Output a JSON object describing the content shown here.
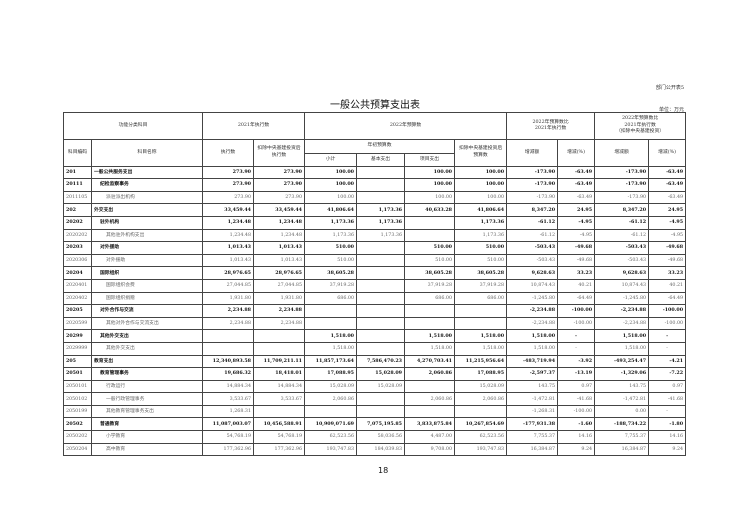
{
  "header": {
    "form_no": "部门公开表5",
    "title": "一般公共预算支出表",
    "unit": "单位：万元"
  },
  "columns": {
    "func_class": "功能分类科目",
    "exec_2021": "2021年执行数",
    "budget_2022": "2022年预算数",
    "cmp_2021": "2022年预算数比\n2021年执行数",
    "cmp_2021_excl": "2022年预算数比\n2021年执行数\n（扣除中央基建投资）",
    "code": "科目编码",
    "name": "科目名称",
    "exec": "执行数",
    "exec_excl": "扣除中央基建投资后\n执行数",
    "annual_budget": "年初预算数",
    "budget_excl": "扣除中央基建投资后\n预算数",
    "change_amt": "增减额",
    "change_pct": "增减(%)",
    "change_amt2": "增减额",
    "change_pct2": "增减(%)",
    "subtotal": "小计",
    "basic": "基本支出",
    "project": "项目支出"
  },
  "rows": [
    {
      "code": "201",
      "name": "一般公共服务支出",
      "level": 1,
      "v": [
        "273.90",
        "273.90",
        "100.00",
        "",
        "100.00",
        "100.00",
        "-173.90",
        "-63.49",
        "-173.90",
        "-63.49"
      ]
    },
    {
      "code": "20111",
      "name": "纪检监察事务",
      "level": 2,
      "v": [
        "273.90",
        "273.90",
        "100.00",
        "",
        "100.00",
        "100.00",
        "-173.90",
        "-63.49",
        "-173.90",
        "-63.49"
      ]
    },
    {
      "code": "2011105",
      "name": "派驻派出机构",
      "level": 3,
      "v": [
        "273.90",
        "273.90",
        "100.00",
        "",
        "100.00",
        "100.00",
        "-173.90",
        "-63.49",
        "-173.90",
        "-63.49"
      ]
    },
    {
      "code": "202",
      "name": "外交支出",
      "level": 1,
      "v": [
        "33,459.44",
        "33,459.44",
        "41,806.64",
        "1,173.36",
        "40,633.28",
        "41,806.64",
        "8,347.20",
        "24.95",
        "8,347.20",
        "24.95"
      ]
    },
    {
      "code": "20202",
      "name": "驻外机构",
      "level": 2,
      "v": [
        "1,234.48",
        "1,234.48",
        "1,173.36",
        "1,173.36",
        "",
        "1,173.36",
        "-61.12",
        "-4.95",
        "-61.12",
        "-4.95"
      ]
    },
    {
      "code": "2020202",
      "name": "其他驻外机构支出",
      "level": 3,
      "v": [
        "1,234.48",
        "1,234.48",
        "1,173.36",
        "1,173.36",
        "",
        "1,173.36",
        "-61.12",
        "-4.95",
        "-61.12",
        "-4.95"
      ]
    },
    {
      "code": "20203",
      "name": "对外援助",
      "level": 2,
      "v": [
        "1,013.43",
        "1,013.43",
        "510.00",
        "",
        "510.00",
        "510.00",
        "-503.43",
        "-49.68",
        "-503.43",
        "-49.68"
      ]
    },
    {
      "code": "2020306",
      "name": "对外援助",
      "level": 3,
      "v": [
        "1,013.43",
        "1,013.43",
        "510.00",
        "",
        "510.00",
        "510.00",
        "-503.43",
        "-49.68",
        "-503.43",
        "-49.68"
      ]
    },
    {
      "code": "20204",
      "name": "国际组织",
      "level": 2,
      "v": [
        "28,976.65",
        "28,976.65",
        "38,605.28",
        "",
        "38,605.28",
        "38,605.28",
        "9,628.63",
        "33.23",
        "9,628.63",
        "33.23"
      ]
    },
    {
      "code": "2020401",
      "name": "国际组织会费",
      "level": 3,
      "v": [
        "27,044.85",
        "27,044.85",
        "37,919.28",
        "",
        "37,919.28",
        "37,919.28",
        "10,874.43",
        "40.21",
        "10,874.43",
        "40.21"
      ]
    },
    {
      "code": "2020402",
      "name": "国际组织捐赠",
      "level": 3,
      "v": [
        "1,931.80",
        "1,931.80",
        "686.00",
        "",
        "686.00",
        "686.00",
        "-1,245.80",
        "-64.49",
        "-1,245.80",
        "-64.49"
      ]
    },
    {
      "code": "20205",
      "name": "对外合作与交流",
      "level": 2,
      "v": [
        "2,234.88",
        "2,234.88",
        "",
        "",
        "",
        "",
        "-2,234.88",
        "-100.00",
        "-2,234.88",
        "-100.00"
      ]
    },
    {
      "code": "2020599",
      "name": "其他对外合作与交流支出",
      "level": 3,
      "v": [
        "2,234.88",
        "2,234.88",
        "",
        "",
        "",
        "",
        "-2,234.88",
        "-100.00",
        "-2,234.88",
        "-100.00"
      ]
    },
    {
      "code": "20299",
      "name": "其他外交支出",
      "level": 2,
      "v": [
        "",
        "",
        "1,518.00",
        "",
        "1,518.00",
        "1,518.00",
        "1,518.00",
        "-",
        "1,518.00",
        "-"
      ]
    },
    {
      "code": "2029999",
      "name": "其他外交支出",
      "level": 3,
      "v": [
        "",
        "",
        "1,518.00",
        "",
        "1,518.00",
        "1,518.00",
        "1,518.00",
        "-",
        "1,518.00",
        "-"
      ]
    },
    {
      "code": "205",
      "name": "教育支出",
      "level": 1,
      "v": [
        "12,340,893.58",
        "11,709,211.11",
        "11,857,173.64",
        "7,586,470.23",
        "4,270,703.41",
        "11,215,956.64",
        "-483,719.94",
        "-3.92",
        "-493,254.47",
        "-4.21"
      ]
    },
    {
      "code": "20501",
      "name": "教育管理事务",
      "level": 2,
      "v": [
        "19,686.32",
        "18,418.01",
        "17,088.95",
        "15,028.09",
        "2,060.86",
        "17,088.95",
        "-2,597.37",
        "-13.19",
        "-1,329.06",
        "-7.22"
      ]
    },
    {
      "code": "2050101",
      "name": "行政运行",
      "level": 3,
      "v": [
        "14,884.34",
        "14,884.34",
        "15,028.09",
        "15,028.09",
        "",
        "15,028.09",
        "143.75",
        "0.97",
        "143.75",
        "0.97"
      ]
    },
    {
      "code": "2050102",
      "name": "一般行政管理事务",
      "level": 3,
      "v": [
        "3,533.67",
        "3,533.67",
        "2,060.86",
        "",
        "2,060.86",
        "2,060.86",
        "-1,472.81",
        "-41.68",
        "-1,472.81",
        "-41.68"
      ]
    },
    {
      "code": "2050199",
      "name": "其他教育管理事务支出",
      "level": 3,
      "v": [
        "1,268.31",
        "",
        "",
        "",
        "",
        "",
        "-1,268.31",
        "-100.00",
        "0.00",
        "-"
      ]
    },
    {
      "code": "20502",
      "name": "普通教育",
      "level": 2,
      "v": [
        "11,087,003.07",
        "10,456,588.91",
        "10,909,071.69",
        "7,075,195.85",
        "3,833,875.84",
        "10,267,854.69",
        "-177,931.38",
        "-1.60",
        "-188,734.22",
        "-1.80"
      ]
    },
    {
      "code": "2050202",
      "name": "小学教育",
      "level": 3,
      "v": [
        "54,768.19",
        "54,768.19",
        "62,523.56",
        "58,036.56",
        "4,487.00",
        "62,523.56",
        "7,755.37",
        "14.16",
        "7,755.37",
        "14.16"
      ]
    },
    {
      "code": "2050204",
      "name": "高中教育",
      "level": 3,
      "v": [
        "177,362.96",
        "177,362.96",
        "193,747.83",
        "184,039.83",
        "9,708.00",
        "193,747.83",
        "16,384.87",
        "9.24",
        "16,384.87",
        "9.24"
      ]
    }
  ],
  "footer": {
    "page_number": "18"
  }
}
